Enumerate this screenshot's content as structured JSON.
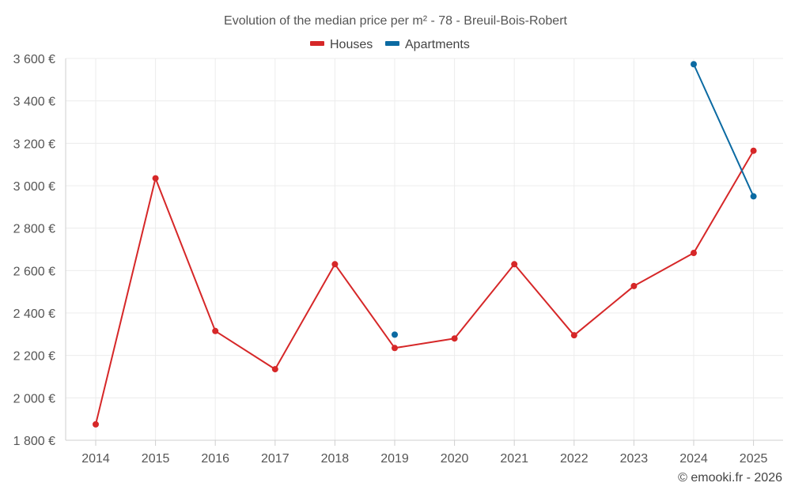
{
  "chart_data": {
    "type": "line",
    "title": "Evolution of the median price per m² - 78 - Breuil-Bois-Robert",
    "categories": [
      "2014",
      "2015",
      "2016",
      "2017",
      "2018",
      "2019",
      "2020",
      "2021",
      "2022",
      "2023",
      "2024",
      "2025"
    ],
    "ylim": [
      1800,
      3600
    ],
    "yticks": [
      1800,
      2000,
      2200,
      2400,
      2600,
      2800,
      3000,
      3200,
      3400,
      3600
    ],
    "ytick_labels": [
      "1 800 €",
      "2 000 €",
      "2 200 €",
      "2 400 €",
      "2 600 €",
      "2 800 €",
      "3 000 €",
      "3 200 €",
      "3 400 €",
      "3 600 €"
    ],
    "legend_position": "top-center",
    "grid": true,
    "series": [
      {
        "name": "Houses",
        "color": "#d62728",
        "values": [
          1875,
          3035,
          2315,
          2135,
          2630,
          2235,
          2280,
          2630,
          2295,
          2527,
          2683,
          3165
        ]
      },
      {
        "name": "Apartments",
        "color": "#0b6aa2",
        "values": [
          null,
          null,
          null,
          null,
          null,
          2298,
          null,
          null,
          null,
          null,
          3573,
          2950
        ]
      }
    ],
    "credit": "© emooki.fr - 2026"
  }
}
